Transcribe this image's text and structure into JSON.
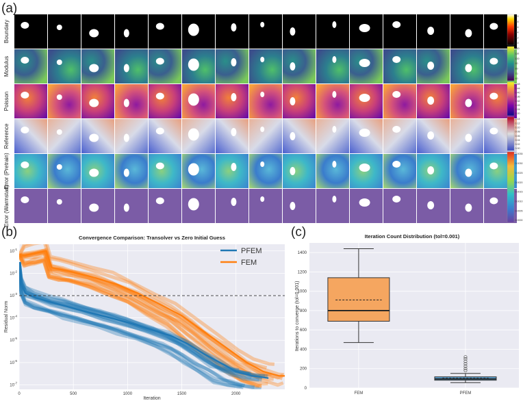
{
  "panel_a": {
    "label": "(a)",
    "rows": [
      "Boundary",
      "Modulus",
      "Poisson",
      "Reference",
      "Error (Pretrain)",
      "Error (Warmstart)"
    ],
    "colorbar_ticks": [
      [
        "1.0",
        "0.8",
        "0.6",
        "0.4",
        "0.2",
        "0.0"
      ],
      [
        "120",
        "110",
        "100",
        "90",
        "80",
        "70",
        "60"
      ],
      [
        "0.48",
        "0.44",
        "0.40",
        "0.36",
        "0.32",
        "0.28",
        "0.24",
        "0.20"
      ],
      [
        "0.14",
        "0.12",
        "0.10",
        "0.08",
        "0.06",
        "0.04",
        "0.02",
        "0.00"
      ],
      [
        "0.0035",
        "0.0030",
        "0.0025",
        "0.0020",
        "0.0015",
        "0.0010",
        "0.0005",
        "0.0000"
      ]
    ]
  },
  "panel_b": {
    "label": "(b)",
    "legend": [
      "PFEM",
      "FEM"
    ]
  },
  "panel_c": {
    "label": "(c)"
  },
  "colors": {
    "pfem": "#1f77b4",
    "fem": "#ff7f0e",
    "box_fem": "#f5a660",
    "box_pfem": "#5aa0d0",
    "plot_bg": "#eaeaf2"
  },
  "chart_data": [
    {
      "type": "line",
      "title": "Convergence Comparison: Transolver vs Zero Initial Guess",
      "xlabel": "Iteration",
      "ylabel": "Residual Norm",
      "xlim": [
        0,
        2450
      ],
      "ylim_log10": [
        -7.2,
        -0.7
      ],
      "yscale": "log",
      "xticks": [
        0,
        500,
        1000,
        1500,
        2000
      ],
      "yticks_exp": [
        -1,
        -2,
        -3,
        -4,
        -5,
        -6,
        -7
      ],
      "threshold": 0.001,
      "series": [
        {
          "name": "PFEM",
          "x": [
            0,
            20,
            60,
            150,
            300,
            450,
            600,
            800,
            1000,
            1200,
            1400,
            1550,
            1700,
            1850,
            2000,
            2150,
            2300
          ],
          "y_log10": [
            -1.5,
            -2.5,
            -2.9,
            -3.1,
            -3.3,
            -3.5,
            -3.7,
            -3.95,
            -4.2,
            -4.5,
            -4.8,
            -5.15,
            -5.6,
            -6.0,
            -6.4,
            -6.6,
            -6.7
          ]
        },
        {
          "name": "FEM",
          "x": [
            0,
            50,
            150,
            250,
            300,
            400,
            500,
            700,
            900,
            1100,
            1300,
            1500,
            1700,
            1900,
            2100,
            2250,
            2400,
            2450
          ],
          "y_log10": [
            -1.2,
            -1.2,
            -1.1,
            -1.0,
            -1.75,
            -1.85,
            -1.95,
            -2.2,
            -2.5,
            -2.9,
            -3.4,
            -3.9,
            -4.6,
            -5.3,
            -6.0,
            -6.4,
            -6.6,
            -6.6
          ]
        }
      ]
    },
    {
      "type": "box",
      "title": "Iteration Count Distribution (tol=0.001)",
      "xlabel": "",
      "ylabel": "Iterations to converge (tol=0.001)",
      "ylim": [
        0,
        1500
      ],
      "yticks": [
        0,
        200,
        400,
        600,
        800,
        1000,
        1200,
        1400
      ],
      "categories": [
        "FEM",
        "PFEM"
      ],
      "boxes": [
        {
          "name": "FEM",
          "whislo": 470,
          "q1": 690,
          "med": 800,
          "mean": 910,
          "q3": 1140,
          "whishi": 1440,
          "fliers": []
        },
        {
          "name": "PFEM",
          "whislo": 55,
          "q1": 80,
          "med": 93,
          "mean": 100,
          "q3": 115,
          "whishi": 150,
          "fliers": [
            180,
            200,
            225,
            250,
            275,
            300,
            320
          ]
        }
      ]
    }
  ]
}
